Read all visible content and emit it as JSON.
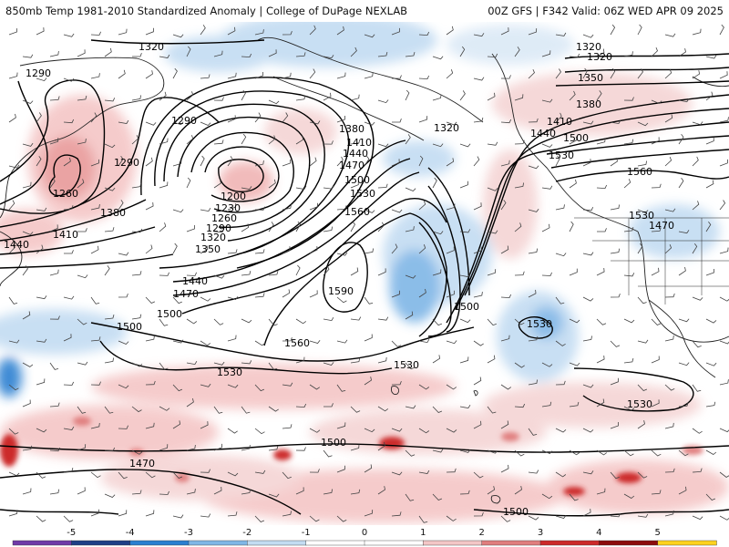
{
  "header": {
    "left_title": "850mb Temp 1981-2010 Standardized Anomaly | College of DuPage NEXLAB",
    "right_title": "00Z GFS | F342 Valid: 06Z WED APR 09 2025"
  },
  "contour_labels": [
    {
      "text": "1320"
    },
    {
      "text": "1290"
    },
    {
      "text": "1290"
    },
    {
      "text": "1290"
    },
    {
      "text": "1260"
    },
    {
      "text": "1380"
    },
    {
      "text": "1410"
    },
    {
      "text": "1440"
    },
    {
      "text": "1200"
    },
    {
      "text": "1230"
    },
    {
      "text": "1260"
    },
    {
      "text": "1290"
    },
    {
      "text": "1320"
    },
    {
      "text": "1350"
    },
    {
      "text": "1380"
    },
    {
      "text": "1410"
    },
    {
      "text": "1440"
    },
    {
      "text": "1470"
    },
    {
      "text": "1500"
    },
    {
      "text": "1530"
    },
    {
      "text": "1560"
    },
    {
      "text": "1590"
    },
    {
      "text": "1500"
    },
    {
      "text": "1440"
    },
    {
      "text": "1470"
    },
    {
      "text": "1500"
    },
    {
      "text": "1560"
    },
    {
      "text": "1320"
    },
    {
      "text": "1320"
    },
    {
      "text": "1320"
    },
    {
      "text": "1350"
    },
    {
      "text": "1380"
    },
    {
      "text": "1410"
    },
    {
      "text": "1440"
    },
    {
      "text": "1500"
    },
    {
      "text": "1530"
    },
    {
      "text": "1560"
    },
    {
      "text": "1530"
    },
    {
      "text": "1470"
    },
    {
      "text": "1500"
    },
    {
      "text": "1530"
    },
    {
      "text": "1530"
    },
    {
      "text": "1530"
    },
    {
      "text": "1530"
    },
    {
      "text": "1500"
    },
    {
      "text": "1470"
    },
    {
      "text": "1500"
    }
  ],
  "colorbar": {
    "labels": [
      "-5",
      "-4",
      "-3",
      "-2",
      "-1",
      "0",
      "1",
      "2",
      "3",
      "4",
      "5"
    ],
    "colors": [
      "#6f3aa8",
      "#1e3f86",
      "#2a7fd0",
      "#7fb6e6",
      "#c3dcf2",
      "#ffffff",
      "#ffffff",
      "#f4c6c6",
      "#e07e7e",
      "#cc2a2a",
      "#8c0c0c",
      "#ffd21e"
    ]
  }
}
